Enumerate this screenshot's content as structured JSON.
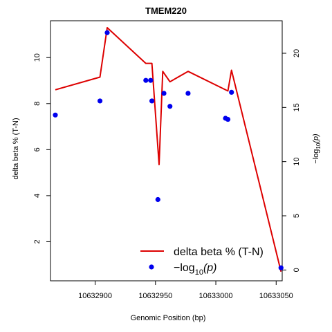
{
  "chart_data": {
    "type": "line",
    "title": "TMEM220",
    "xlabel": "Genomic Position (bp)",
    "ylabel_left": "delta beta % (T-N)",
    "ylabel_right_prefix": "−log",
    "ylabel_right_sub": "10",
    "ylabel_right_var": "(p)",
    "xlim": [
      10632863,
      10633055
    ],
    "ylim_left": [
      0.3,
      11.6
    ],
    "ylim_right": [
      -1.0,
      23.0
    ],
    "x_ticks": [
      10632900,
      10632950,
      10633000,
      10633050
    ],
    "y_ticks_left": [
      2,
      4,
      6,
      8,
      10
    ],
    "y_ticks_right": [
      0,
      5,
      10,
      15,
      20
    ],
    "series": [
      {
        "name": "delta beta % (T-N)",
        "color": "#dd0000",
        "axis": "left",
        "x": [
          10632867,
          10632904,
          10632910,
          10632942,
          10632947,
          10632953,
          10632956,
          10632962,
          10632977,
          10633010,
          10633013,
          10633054
        ],
        "values": [
          8.6,
          9.15,
          11.3,
          9.75,
          9.75,
          5.35,
          9.4,
          8.95,
          9.4,
          8.55,
          9.45,
          0.7
        ]
      },
      {
        "name": "−log10(p)",
        "color": "#0000ee",
        "axis": "right",
        "x": [
          10632867,
          10632904,
          10632910,
          10632942,
          10632946,
          10632947,
          10632952,
          10632957,
          10632962,
          10632977,
          10633008,
          10633010,
          10633013,
          10633054
        ],
        "values": [
          14.3,
          15.6,
          21.9,
          17.5,
          17.5,
          15.6,
          6.5,
          16.3,
          15.1,
          16.3,
          14.0,
          13.9,
          16.4,
          0.2
        ]
      }
    ],
    "legend": {
      "position": "bottom-right",
      "line_label": "delta beta % (T-N)",
      "point_label_prefix": "−log",
      "point_label_sub": "10",
      "point_label_var": "(p)"
    }
  }
}
